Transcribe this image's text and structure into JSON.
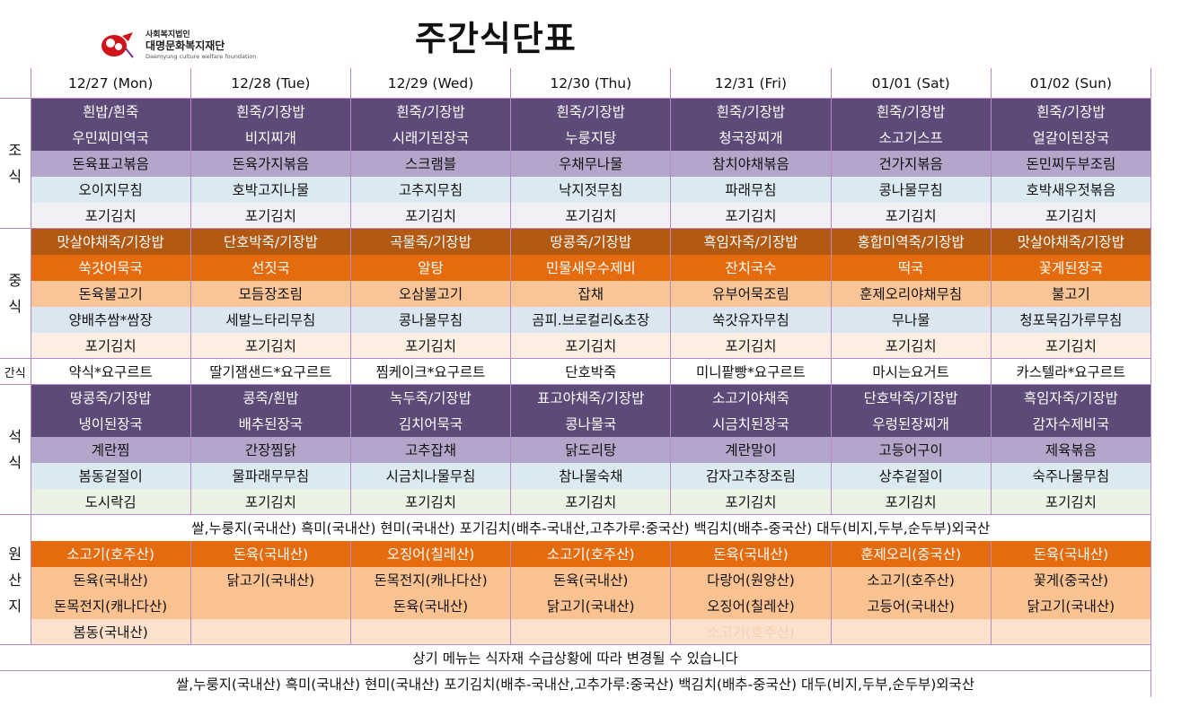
{
  "header": {
    "title": "주간식단표",
    "logo": {
      "line1": "사회복지법인",
      "line2": "대명문화복지재단",
      "line3": "Daemyung culture welfare foundation"
    }
  },
  "dates": [
    "12/27 (Mon)",
    "12/28 (Tue)",
    "12/29 (Wed)",
    "12/30 (Thu)",
    "12/31 (Fri)",
    "01/01 (Sat)",
    "01/02 (Sun)"
  ],
  "sections": {
    "breakfast": {
      "label1": "조",
      "label2": "식"
    },
    "lunch": {
      "label1": "중",
      "label2": "식"
    },
    "snack": {
      "label": "간식"
    },
    "dinner": {
      "label1": "석",
      "label2": "식"
    },
    "origin": {
      "label1": "원",
      "label2": "산",
      "label3": "지"
    }
  },
  "breakfast": [
    [
      "흰밥/흰죽",
      "흰죽/기장밥",
      "흰죽/기장밥",
      "흰죽/기장밥",
      "흰죽/기장밥",
      "흰죽/기장밥",
      "흰죽/기장밥"
    ],
    [
      "우민찌미역국",
      "비지찌개",
      "시래기된장국",
      "누룽지탕",
      "청국장찌개",
      "소고기스프",
      "얼갈이된장국"
    ],
    [
      "돈육표고볶음",
      "돈육가지볶음",
      "스크램블",
      "우채무나물",
      "참치야채볶음",
      "건가지볶음",
      "돈민찌두부조림"
    ],
    [
      "오이지무침",
      "호박고지나물",
      "고추지무침",
      "낙지젓무침",
      "파래무침",
      "콩나물무침",
      "호박새우젓볶음"
    ],
    [
      "포기김치",
      "포기김치",
      "포기김치",
      "포기김치",
      "포기김치",
      "포기김치",
      "포기김치"
    ]
  ],
  "lunch": [
    [
      "맛살야채죽/기장밥",
      "단호박죽/기장밥",
      "곡물죽/기장밥",
      "땅콩죽/기장밥",
      "흑임자죽/기장밥",
      "홍합미역죽/기장밥",
      "맛살야채죽/기장밥"
    ],
    [
      "쑥갓어묵국",
      "선짓국",
      "알탕",
      "민물새우수제비",
      "잔치국수",
      "떡국",
      "꽃게된장국"
    ],
    [
      "돈육불고기",
      "모듬장조림",
      "오삼불고기",
      "잡채",
      "유부어묵조림",
      "훈제오리야채무침",
      "불고기"
    ],
    [
      "양배추쌈*쌈장",
      "세발느타리무침",
      "콩나물무침",
      "곰피.브로컬리&초장",
      "쑥갓유자무침",
      "무나물",
      "청포묵김가루무침"
    ],
    [
      "포기김치",
      "포기김치",
      "포기김치",
      "포기김치",
      "포기김치",
      "포기김치",
      "포기김치"
    ]
  ],
  "snack": [
    "약식*요구르트",
    "딸기잼샌드*요구르트",
    "찜케이크*요구르트",
    "단호박죽",
    "미니팥빵*요구르트",
    "마시는요거트",
    "카스텔라*요구르트"
  ],
  "dinner": [
    [
      "땅콩죽/기장밥",
      "콩죽/흰밥",
      "녹두죽/기장밥",
      "표고야채죽/기장밥",
      "소고기야채죽",
      "단호박죽/기장밥",
      "흑임자죽/기장밥"
    ],
    [
      "냉이된장국",
      "배추된장국",
      "김치어묵국",
      "콩나물국",
      "시금치된장국",
      "우렁된장찌개",
      "감자수제비국"
    ],
    [
      "계란찜",
      "간장찜닭",
      "고추잡채",
      "닭도리탕",
      "계란말이",
      "고등어구이",
      "제육볶음"
    ],
    [
      "봄동겉절이",
      "물파래무무침",
      "시금치나물무침",
      "참나물숙채",
      "감자고추장조림",
      "상추겉절이",
      "숙주나물무침"
    ],
    [
      "도시락김",
      "포기김치",
      "포기김치",
      "포기김치",
      "포기김치",
      "포기김치",
      "포기김치"
    ]
  ],
  "origin_note": "쌀,누룽지(국내산) 흑미(국내산) 현미(국내산) 포기김치(배추-국내산,고추가루:중국산) 백김치(배추-중국산) 대두(비지,두부,순두부)외국산",
  "origin": [
    [
      "소고기(호주산)",
      "돈육(국내산)",
      "오징어(칠레산)",
      "소고기(호주산)",
      "돈육(국내산)",
      "훈제오리(중국산)",
      "돈육(국내산)"
    ],
    [
      "돈육(국내산)",
      "닭고기(국내산)",
      "돈목전지(캐나다산)",
      "돈육(국내산)",
      "다랑어(원양산)",
      "소고기(호주산)",
      "꽃게(중국산)"
    ],
    [
      "돈목전지(캐나다산)",
      "",
      "돈육(국내산)",
      "닭고기(국내산)",
      "오징어(칠레산)",
      "고등어(국내산)",
      "닭고기(국내산)"
    ],
    [
      "봄동(국내산)",
      "",
      "",
      "",
      "소고기(호주산)",
      "",
      ""
    ]
  ],
  "notice": "상기 메뉴는 식자재 수급상황에 따라 변경될 수 있습니다",
  "footer_note": "쌀,누룽지(국내산) 흑미(국내산) 현미(국내산) 포기김치(배추-국내산,고추가루:중국산) 백김치(배추-중국산) 대두(비지,두부,순두부)외국산"
}
